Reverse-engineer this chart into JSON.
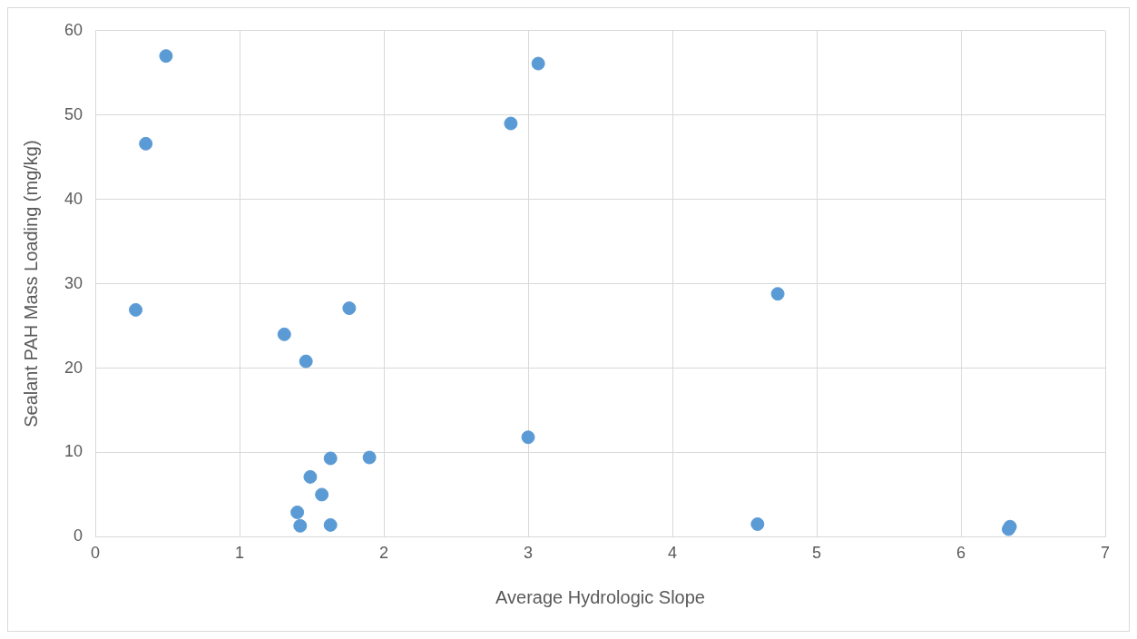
{
  "chart_data": {
    "type": "scatter",
    "xlabel": "Average Hydrologic Slope",
    "ylabel": "Sealant PAH Mass Loading (mg/kg)",
    "series": [
      {
        "color": "#5b9bd5",
        "x": [
          0.49,
          0.35,
          0.28,
          1.31,
          1.76,
          1.46,
          1.63,
          1.9,
          1.49,
          1.57,
          1.4,
          1.42,
          1.63,
          2.88,
          3.07,
          3.0,
          4.73,
          4.59,
          6.34,
          6.33
        ],
        "values": [
          57,
          46.6,
          26.9,
          24,
          27.1,
          20.8,
          9.3,
          9.4,
          7.1,
          5,
          2.9,
          1.3,
          1.4,
          49,
          56.1,
          11.8,
          28.8,
          1.5,
          1.2,
          0.9
        ]
      }
    ],
    "xlim": [
      0,
      7
    ],
    "xticks": [
      0,
      1,
      2,
      3,
      4,
      5,
      6,
      7
    ],
    "ylim": [
      0,
      60
    ],
    "yticks": [
      0,
      10,
      20,
      30,
      40,
      50,
      60
    ],
    "grid": true,
    "legend": false,
    "marker": "circle"
  }
}
